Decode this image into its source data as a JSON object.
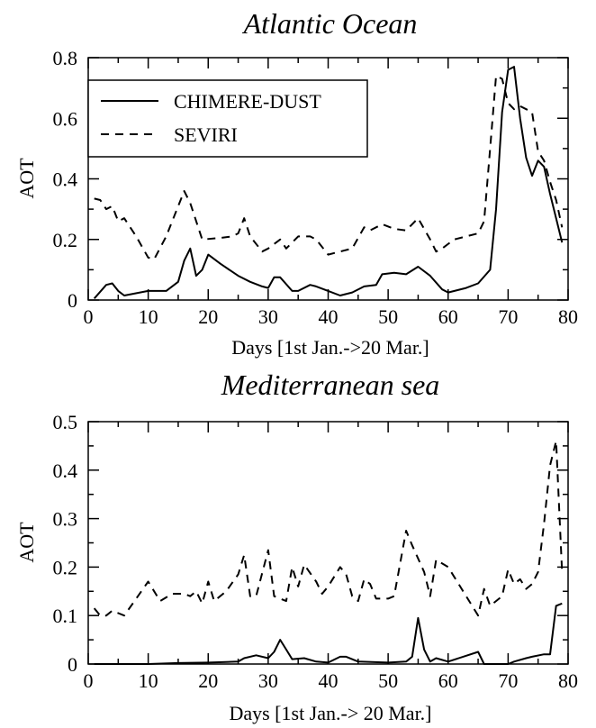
{
  "chart_data": [
    {
      "type": "line",
      "title": "Atlantic Ocean",
      "xlabel": "Days [1st Jan.->20 Mar.]",
      "ylabel": "AOT",
      "xlim": [
        0,
        80
      ],
      "ylim": [
        0,
        0.8
      ],
      "xticks": [
        "0",
        "10",
        "20",
        "30",
        "40",
        "50",
        "60",
        "70",
        "80"
      ],
      "yticks": [
        "0",
        "0.2",
        "0.4",
        "0.6",
        "0.8"
      ],
      "legend": "top-left",
      "series": [
        {
          "name": "CHIMERE-DUST",
          "style": "solid",
          "points": [
            [
              1,
              0.005
            ],
            [
              3,
              0.05
            ],
            [
              4,
              0.055
            ],
            [
              5,
              0.03
            ],
            [
              6,
              0.015
            ],
            [
              10,
              0.03
            ],
            [
              12,
              0.03
            ],
            [
              13,
              0.03
            ],
            [
              15,
              0.06
            ],
            [
              16,
              0.13
            ],
            [
              17,
              0.17
            ],
            [
              18,
              0.08
            ],
            [
              19,
              0.1
            ],
            [
              20,
              0.15
            ],
            [
              22,
              0.12
            ],
            [
              25,
              0.08
            ],
            [
              27,
              0.06
            ],
            [
              29,
              0.045
            ],
            [
              30,
              0.04
            ],
            [
              31,
              0.075
            ],
            [
              32,
              0.075
            ],
            [
              34,
              0.03
            ],
            [
              35,
              0.03
            ],
            [
              37,
              0.05
            ],
            [
              38,
              0.045
            ],
            [
              40,
              0.03
            ],
            [
              42,
              0.015
            ],
            [
              44,
              0.025
            ],
            [
              46,
              0.045
            ],
            [
              48,
              0.05
            ],
            [
              49,
              0.085
            ],
            [
              51,
              0.09
            ],
            [
              53,
              0.085
            ],
            [
              55,
              0.11
            ],
            [
              57,
              0.08
            ],
            [
              59,
              0.035
            ],
            [
              60,
              0.025
            ],
            [
              63,
              0.04
            ],
            [
              65,
              0.055
            ],
            [
              67,
              0.1
            ],
            [
              68,
              0.3
            ],
            [
              69,
              0.62
            ],
            [
              70,
              0.76
            ],
            [
              71,
              0.77
            ],
            [
              72,
              0.6
            ],
            [
              73,
              0.47
            ],
            [
              74,
              0.41
            ],
            [
              75,
              0.46
            ],
            [
              76,
              0.44
            ],
            [
              77,
              0.35
            ],
            [
              78,
              0.27
            ],
            [
              79,
              0.19
            ]
          ]
        },
        {
          "name": "SEVIRI",
          "style": "dashed",
          "points": [
            [
              1,
              0.335
            ],
            [
              2,
              0.33
            ],
            [
              3,
              0.3
            ],
            [
              4,
              0.31
            ],
            [
              5,
              0.26
            ],
            [
              6,
              0.27
            ],
            [
              8,
              0.21
            ],
            [
              10,
              0.14
            ],
            [
              11,
              0.135
            ],
            [
              13,
              0.21
            ],
            [
              15,
              0.31
            ],
            [
              16,
              0.36
            ],
            [
              17,
              0.32
            ],
            [
              19,
              0.2
            ],
            [
              22,
              0.205
            ],
            [
              24,
              0.21
            ],
            [
              25,
              0.22
            ],
            [
              26,
              0.27
            ],
            [
              27,
              0.21
            ],
            [
              29,
              0.16
            ],
            [
              30,
              0.17
            ],
            [
              32,
              0.2
            ],
            [
              33,
              0.17
            ],
            [
              35,
              0.21
            ],
            [
              37,
              0.21
            ],
            [
              38,
              0.2
            ],
            [
              40,
              0.15
            ],
            [
              42,
              0.16
            ],
            [
              44,
              0.17
            ],
            [
              46,
              0.24
            ],
            [
              47,
              0.23
            ],
            [
              49,
              0.25
            ],
            [
              51,
              0.235
            ],
            [
              53,
              0.23
            ],
            [
              55,
              0.27
            ],
            [
              57,
              0.2
            ],
            [
              58,
              0.16
            ],
            [
              59,
              0.17
            ],
            [
              61,
              0.2
            ],
            [
              63,
              0.21
            ],
            [
              65,
              0.22
            ],
            [
              66,
              0.26
            ],
            [
              67,
              0.5
            ],
            [
              68,
              0.74
            ],
            [
              69,
              0.73
            ],
            [
              70,
              0.65
            ],
            [
              71,
              0.63
            ],
            [
              72,
              0.64
            ],
            [
              74,
              0.62
            ],
            [
              75,
              0.49
            ],
            [
              76,
              0.46
            ],
            [
              77,
              0.39
            ],
            [
              78,
              0.33
            ],
            [
              79,
              0.24
            ]
          ]
        }
      ]
    },
    {
      "type": "line",
      "title": "Mediterranean sea",
      "xlabel": "Days [1st Jan.-> 20 Mar.]",
      "ylabel": "AOT",
      "xlim": [
        0,
        80
      ],
      "ylim": [
        0,
        0.5
      ],
      "xticks": [
        "0",
        "10",
        "20",
        "30",
        "40",
        "50",
        "60",
        "70",
        "80"
      ],
      "yticks": [
        "0",
        "0.1",
        "0.2",
        "0.3",
        "0.4",
        "0.5"
      ],
      "series": [
        {
          "style": "solid",
          "points": [
            [
              1,
              0.0
            ],
            [
              10,
              0.0
            ],
            [
              15,
              0.002
            ],
            [
              20,
              0.003
            ],
            [
              25,
              0.005
            ],
            [
              26,
              0.012
            ],
            [
              28,
              0.018
            ],
            [
              30,
              0.012
            ],
            [
              31,
              0.025
            ],
            [
              32,
              0.05
            ],
            [
              33,
              0.03
            ],
            [
              34,
              0.01
            ],
            [
              36,
              0.012
            ],
            [
              38,
              0.005
            ],
            [
              40,
              0.003
            ],
            [
              42,
              0.015
            ],
            [
              43,
              0.015
            ],
            [
              45,
              0.005
            ],
            [
              50,
              0.003
            ],
            [
              53,
              0.005
            ],
            [
              54,
              0.015
            ],
            [
              55,
              0.095
            ],
            [
              56,
              0.03
            ],
            [
              57,
              0.005
            ],
            [
              58,
              0.012
            ],
            [
              60,
              0.005
            ],
            [
              65,
              0.025
            ],
            [
              66,
              0.0
            ],
            [
              70,
              0.0
            ],
            [
              71,
              0.005
            ],
            [
              73,
              0.012
            ],
            [
              74,
              0.015
            ],
            [
              76,
              0.02
            ],
            [
              77,
              0.02
            ],
            [
              78,
              0.12
            ],
            [
              79,
              0.125
            ]
          ]
        },
        {
          "style": "dashed",
          "points": [
            [
              1,
              0.115
            ],
            [
              2,
              0.1
            ],
            [
              3,
              0.1
            ],
            [
              4,
              0.11
            ],
            [
              5,
              0.105
            ],
            [
              6,
              0.1
            ],
            [
              8,
              0.135
            ],
            [
              10,
              0.17
            ],
            [
              12,
              0.13
            ],
            [
              14,
              0.145
            ],
            [
              16,
              0.145
            ],
            [
              17,
              0.14
            ],
            [
              18,
              0.15
            ],
            [
              19,
              0.125
            ],
            [
              20,
              0.17
            ],
            [
              21,
              0.13
            ],
            [
              23,
              0.15
            ],
            [
              25,
              0.185
            ],
            [
              26,
              0.225
            ],
            [
              27,
              0.14
            ],
            [
              28,
              0.14
            ],
            [
              30,
              0.235
            ],
            [
              31,
              0.14
            ],
            [
              33,
              0.13
            ],
            [
              34,
              0.2
            ],
            [
              35,
              0.16
            ],
            [
              36,
              0.205
            ],
            [
              38,
              0.17
            ],
            [
              39,
              0.145
            ],
            [
              40,
              0.16
            ],
            [
              42,
              0.2
            ],
            [
              43,
              0.185
            ],
            [
              44,
              0.14
            ],
            [
              45,
              0.13
            ],
            [
              46,
              0.175
            ],
            [
              47,
              0.165
            ],
            [
              48,
              0.135
            ],
            [
              50,
              0.135
            ],
            [
              51,
              0.14
            ],
            [
              53,
              0.275
            ],
            [
              54,
              0.245
            ],
            [
              56,
              0.19
            ],
            [
              57,
              0.14
            ],
            [
              58,
              0.215
            ],
            [
              60,
              0.2
            ],
            [
              62,
              0.16
            ],
            [
              64,
              0.12
            ],
            [
              65,
              0.1
            ],
            [
              66,
              0.155
            ],
            [
              67,
              0.12
            ],
            [
              68,
              0.13
            ],
            [
              69,
              0.14
            ],
            [
              70,
              0.195
            ],
            [
              71,
              0.165
            ],
            [
              72,
              0.175
            ],
            [
              73,
              0.155
            ],
            [
              74,
              0.165
            ],
            [
              75,
              0.19
            ],
            [
              76,
              0.29
            ],
            [
              77,
              0.41
            ],
            [
              78,
              0.46
            ],
            [
              79,
              0.19
            ]
          ]
        }
      ]
    }
  ]
}
